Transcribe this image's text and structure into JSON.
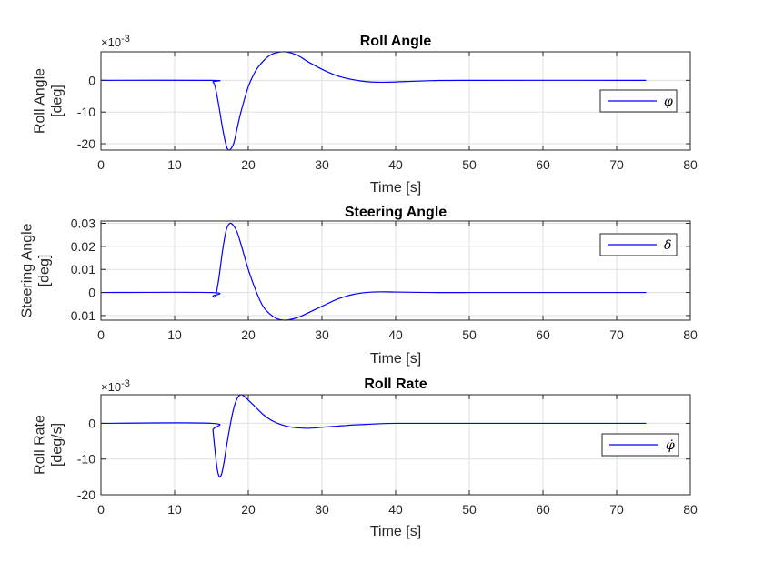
{
  "chart_data": [
    {
      "type": "line",
      "title": "Roll Angle",
      "xlabel": "Time [s]",
      "ylabel": [
        "Roll Angle",
        "[deg]"
      ],
      "exponent_label": "×10^-3",
      "xlim": [
        0,
        80
      ],
      "ylim": [
        -22,
        9
      ],
      "xticks": [
        0,
        10,
        20,
        30,
        40,
        50,
        60,
        70,
        80
      ],
      "xtick_labels": [
        "0",
        "10",
        "20",
        "30",
        "40",
        "50",
        "60",
        "70",
        "80"
      ],
      "yticks": [
        -20,
        -10,
        0
      ],
      "ytick_labels": [
        "-20",
        "-10",
        "0"
      ],
      "grid": true,
      "legend_position": "right",
      "series": [
        {
          "name": "φ",
          "color": "#0000ff",
          "x": [
            0,
            15,
            15.2,
            15.5,
            16,
            16.5,
            17,
            17.4,
            18,
            18.5,
            19,
            20,
            21,
            22,
            23,
            24,
            25,
            26,
            27,
            28,
            30,
            32,
            34,
            36,
            38,
            40,
            45,
            50,
            74
          ],
          "y": [
            0,
            0,
            -0.5,
            -2,
            -8,
            -15,
            -20.5,
            -22,
            -20,
            -15,
            -10,
            -2,
            3,
            6,
            8,
            8.8,
            9,
            8.5,
            7.5,
            6,
            3.5,
            1.5,
            0.3,
            -0.4,
            -0.6,
            -0.5,
            -0.1,
            0,
            0
          ]
        }
      ]
    },
    {
      "type": "line",
      "title": "Steering Angle",
      "xlabel": "Time [s]",
      "ylabel": [
        "Steering Angle",
        "[deg]"
      ],
      "xlim": [
        0,
        80
      ],
      "ylim": [
        -0.012,
        0.031
      ],
      "xticks": [
        0,
        10,
        20,
        30,
        40,
        50,
        60,
        70,
        80
      ],
      "xtick_labels": [
        "0",
        "10",
        "20",
        "30",
        "40",
        "50",
        "60",
        "70",
        "80"
      ],
      "yticks": [
        -0.01,
        0,
        0.01,
        0.02,
        0.03
      ],
      "ytick_labels": [
        "-0.01",
        "0",
        "0.01",
        "0.02",
        "0.03"
      ],
      "grid": true,
      "legend_position": "top-right",
      "series": [
        {
          "name": "δ",
          "color": "#0000ff",
          "x": [
            0,
            15,
            15.2,
            15.4,
            15.6,
            16,
            16.5,
            17,
            17.5,
            18,
            18.5,
            19,
            20,
            21,
            22,
            23,
            24,
            25,
            26,
            27,
            28,
            30,
            32,
            34,
            36,
            38,
            40,
            45,
            50,
            74
          ],
          "y": [
            0,
            0,
            -0.0015,
            -0.002,
            -0.001,
            0.006,
            0.018,
            0.027,
            0.03,
            0.029,
            0.026,
            0.021,
            0.01,
            0.001,
            -0.006,
            -0.0095,
            -0.0115,
            -0.012,
            -0.0115,
            -0.0105,
            -0.009,
            -0.006,
            -0.003,
            -0.001,
            0,
            0.0003,
            0.0002,
            0,
            0,
            0
          ]
        }
      ]
    },
    {
      "type": "line",
      "title": "Roll Rate",
      "xlabel": "Time [s]",
      "ylabel": [
        "Roll Rate",
        "[deg/s]"
      ],
      "exponent_label": "×10^-3",
      "xlim": [
        0,
        80
      ],
      "ylim": [
        -20,
        8
      ],
      "xticks": [
        0,
        10,
        20,
        30,
        40,
        50,
        60,
        70,
        80
      ],
      "xtick_labels": [
        "0",
        "10",
        "20",
        "30",
        "40",
        "50",
        "60",
        "70",
        "80"
      ],
      "yticks": [
        -20,
        -10,
        0
      ],
      "ytick_labels": [
        "-20",
        "-10",
        "0"
      ],
      "grid": true,
      "legend_position": "right",
      "series": [
        {
          "name": "φ̇",
          "color": "#0000ff",
          "x": [
            0,
            15,
            15.2,
            15.5,
            15.8,
            16.1,
            16.4,
            16.7,
            17,
            17.5,
            18,
            18.5,
            19,
            19.5,
            20,
            21,
            22,
            23,
            24,
            25,
            26,
            27,
            28,
            29,
            30,
            32,
            34,
            36,
            38,
            40,
            45,
            50,
            74
          ],
          "y": [
            0,
            0,
            -2,
            -8,
            -13,
            -15,
            -14,
            -11,
            -7,
            -1,
            4,
            7,
            8,
            7.5,
            6.5,
            4.5,
            2.5,
            1,
            0,
            -0.7,
            -1.1,
            -1.3,
            -1.4,
            -1.3,
            -1.1,
            -0.8,
            -0.5,
            -0.3,
            -0.1,
            0,
            0,
            0,
            0
          ]
        }
      ]
    }
  ]
}
